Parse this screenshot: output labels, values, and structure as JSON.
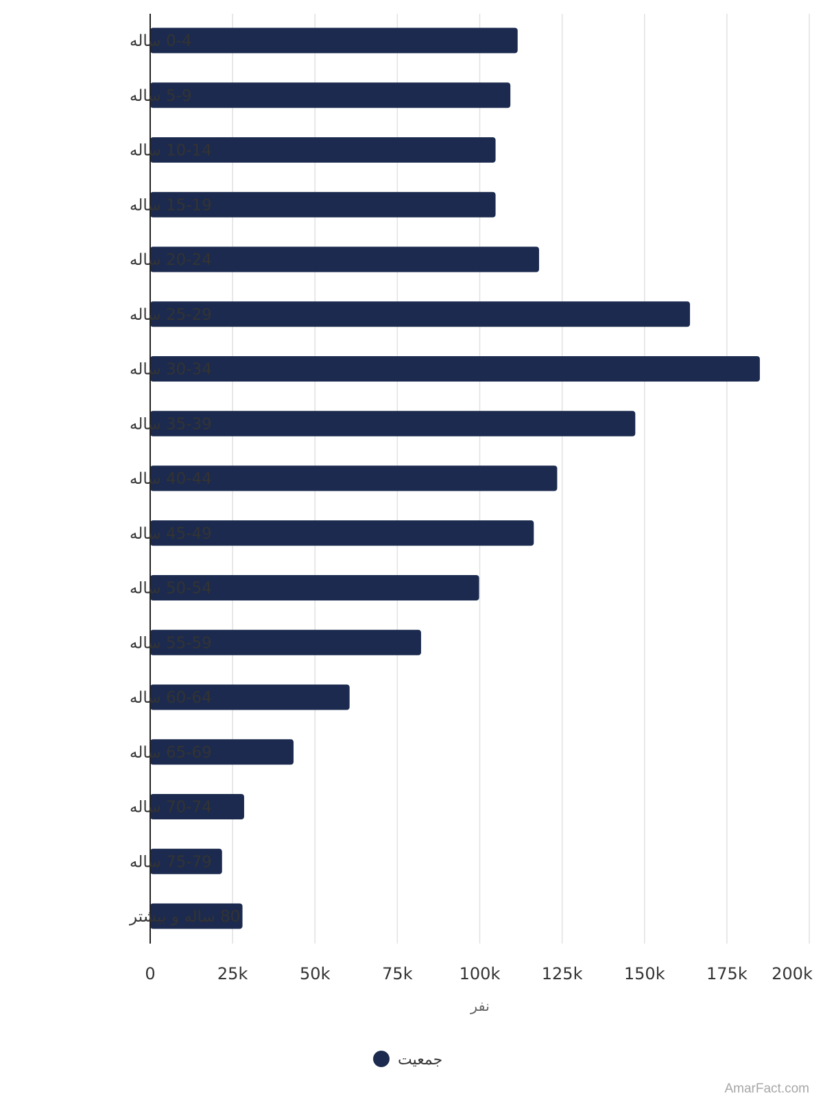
{
  "chart_data": {
    "type": "bar",
    "orientation": "horizontal",
    "categories": [
      "0-4 ساله",
      "5-9 ساله",
      "10-14 ساله",
      "15-19 ساله",
      "20-24 ساله",
      "25-29 ساله",
      "30-34 ساله",
      "35-39 ساله",
      "40-44 ساله",
      "45-49 ساله",
      "50-54 ساله",
      "55-59 ساله",
      "60-64 ساله",
      "65-69 ساله",
      "70-74 ساله",
      "75-79 ساله",
      "80 ساله و بیشتر"
    ],
    "series": [
      {
        "name": "جمعیت",
        "color": "#1b2a4e",
        "values": [
          111500,
          109300,
          104800,
          104800,
          118000,
          163800,
          185000,
          147200,
          123500,
          116400,
          99800,
          82200,
          60500,
          43500,
          28500,
          21800,
          28000
        ]
      }
    ],
    "xlabel": "نفر",
    "ylabel": "",
    "xlim": [
      0,
      200000
    ],
    "xticks": [
      0,
      25000,
      50000,
      75000,
      100000,
      125000,
      150000,
      175000,
      200000
    ],
    "xtick_labels": [
      "0",
      "25k",
      "50k",
      "75k",
      "100k",
      "125k",
      "150k",
      "175k",
      "200k"
    ],
    "grid": "vertical",
    "legend": "bottom-center"
  },
  "watermark": "AmarFact.com"
}
